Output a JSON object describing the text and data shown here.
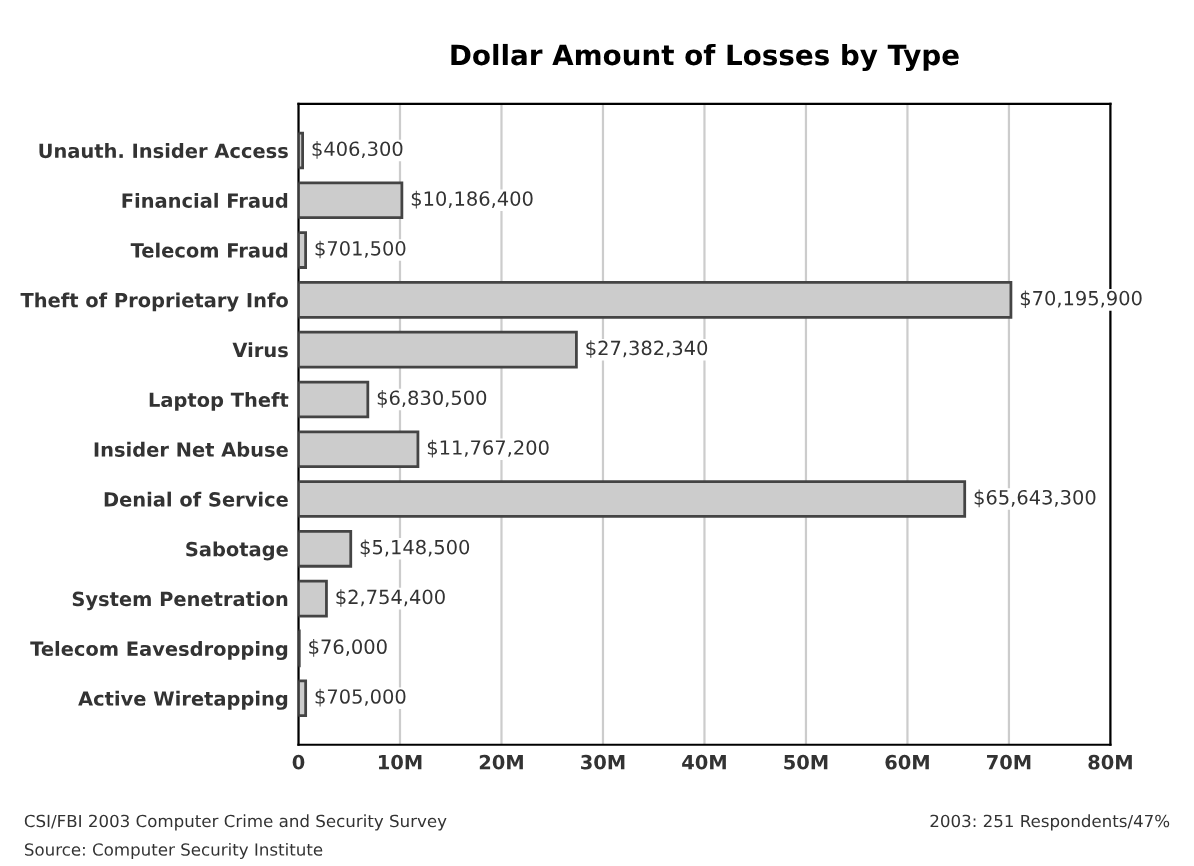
{
  "chart_data": {
    "type": "bar",
    "orientation": "horizontal",
    "title": "Dollar Amount of Losses by Type",
    "categories": [
      "Unauth. Insider Access",
      "Financial Fraud",
      "Telecom Fraud",
      "Theft of Proprietary Info",
      "Virus",
      "Laptop Theft",
      "Insider Net Abuse",
      "Denial of Service",
      "Sabotage",
      "System Penetration",
      "Telecom Eavesdropping",
      "Active Wiretapping"
    ],
    "values": [
      406300,
      10186400,
      701500,
      70195900,
      27382340,
      6830500,
      11767200,
      65643300,
      5148500,
      2754400,
      76000,
      705000
    ],
    "value_labels": [
      "$406,300",
      "$10,186,400",
      "$701,500",
      "$70,195,900",
      "$27,382,340",
      "$6,830,500",
      "$11,767,200",
      "$65,643,300",
      "$5,148,500",
      "$2,754,400",
      "$76,000",
      "$705,000"
    ],
    "color": "#cccccc",
    "xlim": [
      0,
      80000000
    ],
    "xticks": [
      0,
      {
        "value": 10000000,
        "label": "10M"
      },
      {
        "value": 20000000,
        "label": "20M"
      },
      {
        "value": 30000000,
        "label": "30M"
      },
      {
        "value": 40000000,
        "label": "40M"
      },
      {
        "value": 50000000,
        "label": "50M"
      },
      {
        "value": 60000000,
        "label": "60M"
      },
      {
        "value": 70000000,
        "label": "70M"
      },
      {
        "value": 80000000,
        "label": "80M"
      }
    ],
    "grid": "x",
    "annotations": [
      "CSI/FBI 2003 Computer Crime and Security Survey",
      "Source: Computer Security Institute",
      "2003: 251 Respondents/47%"
    ]
  }
}
